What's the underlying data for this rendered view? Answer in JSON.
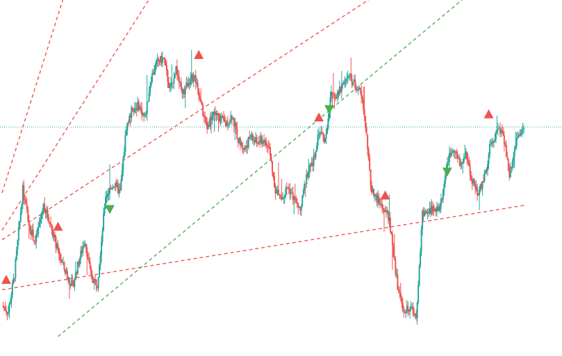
{
  "chart_data": {
    "type": "candlestick",
    "title": "",
    "xlabel": "",
    "ylabel": "",
    "grid": false,
    "legend": "none",
    "xlim": [
      0,
      260
    ],
    "ylim": [
      0,
      100
    ],
    "colors": {
      "up": "#26a69a",
      "down": "#ef5350",
      "buy_marker": "#4caf50",
      "sell_marker": "#ef5350",
      "resistance_line": "#ef5350",
      "support_line": "#4caf50",
      "price_line": "#26a69a"
    },
    "price_level": 67.1,
    "waypoints": [
      [
        0,
        10
      ],
      [
        3,
        8
      ],
      [
        6,
        20
      ],
      [
        10,
        47
      ],
      [
        13,
        36
      ],
      [
        16,
        30
      ],
      [
        20,
        42
      ],
      [
        23,
        37
      ],
      [
        27,
        27
      ],
      [
        31,
        20
      ],
      [
        34,
        16
      ],
      [
        37,
        24
      ],
      [
        40,
        31
      ],
      [
        43,
        19
      ],
      [
        46,
        17
      ],
      [
        50,
        45
      ],
      [
        54,
        49
      ],
      [
        57,
        46
      ],
      [
        60,
        67
      ],
      [
        63,
        73
      ],
      [
        66,
        74
      ],
      [
        69,
        70
      ],
      [
        72,
        83
      ],
      [
        75,
        88
      ],
      [
        78,
        89
      ],
      [
        81,
        79
      ],
      [
        84,
        86
      ],
      [
        87,
        77
      ],
      [
        90,
        82
      ],
      [
        93,
        83
      ],
      [
        96,
        74
      ],
      [
        99,
        67
      ],
      [
        102,
        72
      ],
      [
        105,
        70
      ],
      [
        108,
        68
      ],
      [
        111,
        71
      ],
      [
        114,
        63
      ],
      [
        117,
        60
      ],
      [
        120,
        64
      ],
      [
        123,
        62
      ],
      [
        126,
        63
      ],
      [
        129,
        60
      ],
      [
        132,
        47
      ],
      [
        135,
        44
      ],
      [
        138,
        48
      ],
      [
        141,
        44
      ],
      [
        144,
        40
      ],
      [
        147,
        52
      ],
      [
        150,
        55
      ],
      [
        153,
        66
      ],
      [
        156,
        63
      ],
      [
        159,
        78
      ],
      [
        162,
        77
      ],
      [
        165,
        82
      ],
      [
        168,
        83
      ],
      [
        171,
        80
      ],
      [
        174,
        77
      ],
      [
        176,
        65
      ],
      [
        178,
        48
      ],
      [
        181,
        44
      ],
      [
        184,
        41
      ],
      [
        187,
        38
      ],
      [
        189,
        26
      ],
      [
        191,
        16
      ],
      [
        194,
        8
      ],
      [
        197,
        9
      ],
      [
        200,
        7
      ],
      [
        203,
        39
      ],
      [
        206,
        41
      ],
      [
        209,
        40
      ],
      [
        212,
        43
      ],
      [
        215,
        56
      ],
      [
        218,
        61
      ],
      [
        221,
        55
      ],
      [
        224,
        58
      ],
      [
        227,
        50
      ],
      [
        230,
        46
      ],
      [
        233,
        51
      ],
      [
        236,
        62
      ],
      [
        239,
        66
      ],
      [
        242,
        65
      ],
      [
        245,
        52
      ],
      [
        248,
        62
      ],
      [
        252,
        66
      ]
    ],
    "trend_lines": [
      {
        "kind": "resistance",
        "x": [
          0,
          37
        ],
        "y": [
          46,
          124
        ]
      },
      {
        "kind": "resistance",
        "x": [
          0,
          95
        ],
        "y": [
          34,
          133
        ]
      },
      {
        "kind": "resistance",
        "x": [
          0,
          205
        ],
        "y": [
          31,
          120
        ]
      },
      {
        "kind": "resistance",
        "x": [
          0,
          252
        ],
        "y": [
          15,
          42
        ]
      },
      {
        "kind": "support",
        "x": [
          27,
          246
        ],
        "y": [
          0,
          121
        ]
      }
    ],
    "markers": [
      {
        "kind": "sell",
        "x": 2,
        "y": 18
      },
      {
        "kind": "sell",
        "x": 27,
        "y": 35
      },
      {
        "kind": "buy",
        "x": 52,
        "y": 41
      },
      {
        "kind": "sell",
        "x": 95,
        "y": 90
      },
      {
        "kind": "sell",
        "x": 153,
        "y": 70
      },
      {
        "kind": "buy",
        "x": 158,
        "y": 73
      },
      {
        "kind": "sell",
        "x": 185,
        "y": 45
      },
      {
        "kind": "buy",
        "x": 215,
        "y": 53
      },
      {
        "kind": "sell",
        "x": 235,
        "y": 71
      }
    ]
  }
}
